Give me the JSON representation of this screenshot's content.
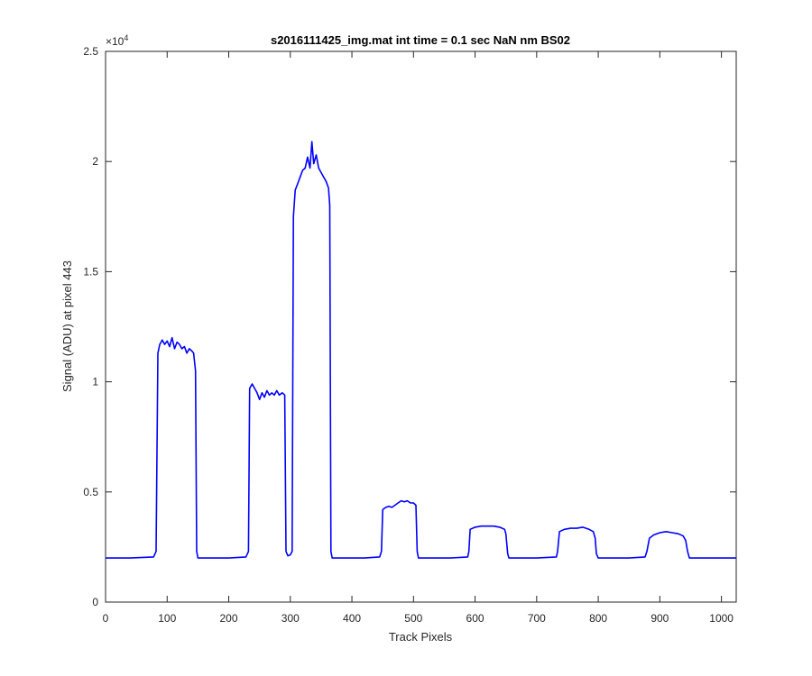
{
  "chart_data": {
    "type": "line",
    "title": "s2016111425_img.mat int time = 0.1 sec  NaN nm BS02",
    "xlabel": "Track Pixels",
    "ylabel": "Signal (ADU) at pixel 443",
    "y_exponent_label": "×10",
    "y_exponent_power": "4",
    "xlim": [
      0,
      1024
    ],
    "ylim": [
      0,
      25000
    ],
    "x_ticks": [
      0,
      100,
      200,
      300,
      400,
      500,
      600,
      700,
      800,
      900,
      1000
    ],
    "x_tick_labels": [
      "0",
      "100",
      "200",
      "300",
      "400",
      "500",
      "600",
      "700",
      "800",
      "900",
      "1000"
    ],
    "y_ticks": [
      0,
      5000,
      10000,
      15000,
      20000,
      25000
    ],
    "y_tick_labels": [
      "0",
      "0.5",
      "1",
      "1.5",
      "2",
      "2.5"
    ],
    "grid": false,
    "legend": "none",
    "series": [
      {
        "color": "#0000ff",
        "points": [
          [
            0,
            2000
          ],
          [
            40,
            2000
          ],
          [
            78,
            2050
          ],
          [
            82,
            2300
          ],
          [
            85,
            11300
          ],
          [
            88,
            11700
          ],
          [
            92,
            11900
          ],
          [
            96,
            11700
          ],
          [
            100,
            11850
          ],
          [
            104,
            11600
          ],
          [
            108,
            12000
          ],
          [
            112,
            11500
          ],
          [
            116,
            11800
          ],
          [
            120,
            11700
          ],
          [
            124,
            11500
          ],
          [
            128,
            11600
          ],
          [
            132,
            11300
          ],
          [
            136,
            11500
          ],
          [
            140,
            11400
          ],
          [
            143,
            11300
          ],
          [
            146,
            10500
          ],
          [
            148,
            2300
          ],
          [
            150,
            2000
          ],
          [
            200,
            2000
          ],
          [
            228,
            2050
          ],
          [
            232,
            2300
          ],
          [
            234,
            9700
          ],
          [
            238,
            9900
          ],
          [
            242,
            9700
          ],
          [
            246,
            9500
          ],
          [
            250,
            9200
          ],
          [
            254,
            9500
          ],
          [
            258,
            9300
          ],
          [
            262,
            9600
          ],
          [
            266,
            9400
          ],
          [
            270,
            9500
          ],
          [
            274,
            9400
          ],
          [
            278,
            9600
          ],
          [
            282,
            9400
          ],
          [
            287,
            9500
          ],
          [
            291,
            9400
          ],
          [
            293,
            2300
          ],
          [
            296,
            2100
          ],
          [
            300,
            2150
          ],
          [
            303,
            2300
          ],
          [
            305,
            17500
          ],
          [
            308,
            18700
          ],
          [
            312,
            19000
          ],
          [
            316,
            19300
          ],
          [
            320,
            19600
          ],
          [
            324,
            19700
          ],
          [
            328,
            20200
          ],
          [
            332,
            19700
          ],
          [
            335,
            20900
          ],
          [
            338,
            19900
          ],
          [
            342,
            20300
          ],
          [
            346,
            19700
          ],
          [
            350,
            19500
          ],
          [
            354,
            19300
          ],
          [
            358,
            19100
          ],
          [
            362,
            18800
          ],
          [
            364,
            18000
          ],
          [
            366,
            2300
          ],
          [
            368,
            2000
          ],
          [
            420,
            2000
          ],
          [
            445,
            2050
          ],
          [
            448,
            2300
          ],
          [
            450,
            4200
          ],
          [
            455,
            4300
          ],
          [
            460,
            4350
          ],
          [
            465,
            4300
          ],
          [
            470,
            4400
          ],
          [
            475,
            4500
          ],
          [
            480,
            4600
          ],
          [
            485,
            4550
          ],
          [
            490,
            4600
          ],
          [
            495,
            4500
          ],
          [
            500,
            4500
          ],
          [
            504,
            4400
          ],
          [
            506,
            2300
          ],
          [
            508,
            2000
          ],
          [
            560,
            2000
          ],
          [
            588,
            2050
          ],
          [
            590,
            2300
          ],
          [
            592,
            3300
          ],
          [
            600,
            3400
          ],
          [
            610,
            3450
          ],
          [
            620,
            3450
          ],
          [
            630,
            3450
          ],
          [
            640,
            3400
          ],
          [
            648,
            3300
          ],
          [
            650,
            3100
          ],
          [
            653,
            2200
          ],
          [
            655,
            2000
          ],
          [
            700,
            2000
          ],
          [
            732,
            2050
          ],
          [
            734,
            2300
          ],
          [
            737,
            3200
          ],
          [
            745,
            3300
          ],
          [
            755,
            3350
          ],
          [
            765,
            3350
          ],
          [
            775,
            3400
          ],
          [
            785,
            3300
          ],
          [
            792,
            3200
          ],
          [
            795,
            2900
          ],
          [
            797,
            2200
          ],
          [
            800,
            2000
          ],
          [
            850,
            2000
          ],
          [
            876,
            2050
          ],
          [
            879,
            2300
          ],
          [
            883,
            2900
          ],
          [
            890,
            3050
          ],
          [
            900,
            3150
          ],
          [
            910,
            3200
          ],
          [
            920,
            3150
          ],
          [
            930,
            3100
          ],
          [
            938,
            3000
          ],
          [
            942,
            2800
          ],
          [
            945,
            2300
          ],
          [
            948,
            2000
          ],
          [
            1024,
            2000
          ]
        ]
      }
    ]
  }
}
